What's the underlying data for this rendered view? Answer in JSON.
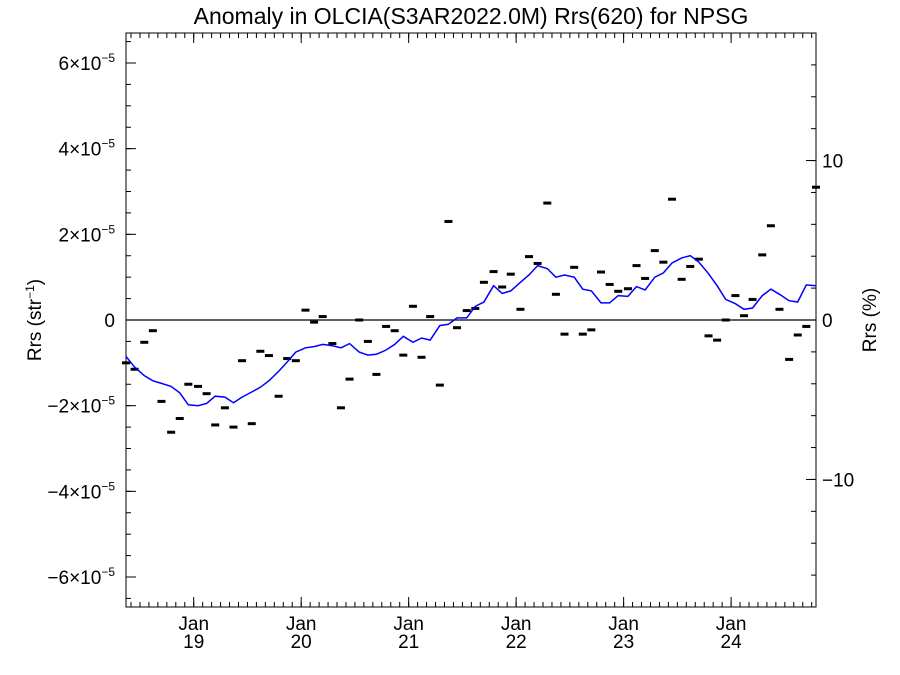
{
  "chart_data": {
    "type": "scatter",
    "title": "Anomaly in OLCIA(S3AR2022.0M) Rrs(620) for NPSG",
    "ylabel": "Rrs (str",
    "ylabel_sup": "−1",
    "ylabel_close": ")",
    "y2label": "Rrs (%)",
    "ylim": [
      -6.7e-05,
      6.7e-05
    ],
    "y2lim": [
      -18.0,
      18.0
    ],
    "xlim": [
      2018.37,
      2024.79
    ],
    "zero_line": true,
    "y_ticks": [
      {
        "value": 6e-05,
        "mantissa": "6×10",
        "exp": "−5"
      },
      {
        "value": 4e-05,
        "mantissa": "4×10",
        "exp": "−5"
      },
      {
        "value": 2e-05,
        "mantissa": "2×10",
        "exp": "−5"
      },
      {
        "value": 0,
        "mantissa": "0",
        "exp": ""
      },
      {
        "value": -2e-05,
        "mantissa": "−2×10",
        "exp": "−5"
      },
      {
        "value": -4e-05,
        "mantissa": "−4×10",
        "exp": "−5"
      },
      {
        "value": -6e-05,
        "mantissa": "−6×10",
        "exp": "−5"
      }
    ],
    "y2_ticks": [
      {
        "value": 10,
        "label": "10"
      },
      {
        "value": 0,
        "label": "0"
      },
      {
        "value": -10,
        "label": "−10"
      }
    ],
    "x_ticks": [
      {
        "value": 2019.0,
        "month": "Jan",
        "year": "19"
      },
      {
        "value": 2020.0,
        "month": "Jan",
        "year": "20"
      },
      {
        "value": 2021.0,
        "month": "Jan",
        "year": "21"
      },
      {
        "value": 2022.0,
        "month": "Jan",
        "year": "22"
      },
      {
        "value": 2023.0,
        "month": "Jan",
        "year": "23"
      },
      {
        "value": 2024.0,
        "month": "Jan",
        "year": "24"
      }
    ],
    "series": [
      {
        "kind": "points",
        "color": "#000000",
        "x": [
          2018.37,
          2018.45,
          2018.54,
          2018.62,
          2018.7,
          2018.79,
          2018.87,
          2018.95,
          2019.04,
          2019.12,
          2019.2,
          2019.29,
          2019.37,
          2019.45,
          2019.54,
          2019.62,
          2019.7,
          2019.79,
          2019.87,
          2019.95,
          2020.04,
          2020.12,
          2020.2,
          2020.29,
          2020.37,
          2020.45,
          2020.54,
          2020.62,
          2020.7,
          2020.79,
          2020.87,
          2020.95,
          2021.04,
          2021.12,
          2021.2,
          2021.29,
          2021.37,
          2021.45,
          2021.54,
          2021.62,
          2021.7,
          2021.79,
          2021.87,
          2021.95,
          2022.04,
          2022.12,
          2022.2,
          2022.29,
          2022.37,
          2022.45,
          2022.54,
          2022.62,
          2022.7,
          2022.79,
          2022.87,
          2022.95,
          2023.04,
          2023.12,
          2023.2,
          2023.29,
          2023.37,
          2023.45,
          2023.54,
          2023.62,
          2023.7,
          2023.79,
          2023.87,
          2023.95,
          2024.04,
          2024.12,
          2024.2,
          2024.29,
          2024.37,
          2024.45,
          2024.54,
          2024.62,
          2024.7,
          2024.79
        ],
        "y": [
          -1e-05,
          -1.15e-05,
          -5.2e-06,
          -2.5e-06,
          -1.9e-05,
          -2.62e-05,
          -2.3e-05,
          -1.5e-05,
          -1.55e-05,
          -1.72e-05,
          -2.45e-05,
          -2.05e-05,
          -2.5e-05,
          -9.5e-06,
          -2.42e-05,
          -7.3e-06,
          -8.3e-06,
          -1.78e-05,
          -9e-06,
          -9.5e-06,
          2.3e-06,
          -5e-07,
          8e-07,
          -5.5e-06,
          -2.05e-05,
          -1.38e-05,
          0.0,
          -5e-06,
          -1.27e-05,
          -1.5e-06,
          -2.5e-06,
          -8.2e-06,
          3.2e-06,
          -8.7e-06,
          8e-07,
          -1.52e-05,
          2.3e-05,
          -1.8e-06,
          2.2e-06,
          2.7e-06,
          8.8e-06,
          1.13e-05,
          7.7e-06,
          1.07e-05,
          2.5e-06,
          1.48e-05,
          1.32e-05,
          2.73e-05,
          6e-06,
          -3.3e-06,
          1.23e-05,
          -3.3e-06,
          -2.3e-06,
          1.12e-05,
          8.3e-06,
          6.7e-06,
          7.3e-06,
          1.27e-05,
          9.7e-06,
          1.62e-05,
          1.35e-05,
          2.82e-05,
          9.5e-06,
          1.25e-05,
          1.42e-05,
          -3.7e-06,
          -4.7e-06,
          0.0,
          5.7e-06,
          1e-06,
          4.8e-06,
          1.52e-05,
          2.2e-05,
          2.5e-06,
          -9.2e-06,
          -3.5e-06,
          -1.5e-06,
          3.1e-05
        ]
      },
      {
        "kind": "line",
        "color": "#0000ff",
        "x": [
          2018.37,
          2018.45,
          2018.54,
          2018.62,
          2018.7,
          2018.79,
          2018.87,
          2018.95,
          2019.04,
          2019.12,
          2019.2,
          2019.29,
          2019.37,
          2019.45,
          2019.54,
          2019.62,
          2019.7,
          2019.79,
          2019.87,
          2019.95,
          2020.04,
          2020.12,
          2020.2,
          2020.29,
          2020.37,
          2020.45,
          2020.54,
          2020.62,
          2020.7,
          2020.79,
          2020.87,
          2020.95,
          2021.04,
          2021.12,
          2021.2,
          2021.29,
          2021.37,
          2021.45,
          2021.54,
          2021.62,
          2021.7,
          2021.79,
          2021.87,
          2021.95,
          2022.04,
          2022.12,
          2022.2,
          2022.29,
          2022.37,
          2022.45,
          2022.54,
          2022.62,
          2022.7,
          2022.79,
          2022.87,
          2022.95,
          2023.04,
          2023.12,
          2023.2,
          2023.29,
          2023.37,
          2023.45,
          2023.54,
          2023.62,
          2023.7,
          2023.79,
          2023.87,
          2023.95,
          2024.04,
          2024.12,
          2024.2,
          2024.29,
          2024.37,
          2024.45,
          2024.54,
          2024.62,
          2024.7,
          2024.79
        ],
        "y": [
          -8.5e-06,
          -1.1e-05,
          -1.3e-05,
          -1.42e-05,
          -1.48e-05,
          -1.55e-05,
          -1.7e-05,
          -1.98e-05,
          -2e-05,
          -1.95e-05,
          -1.78e-05,
          -1.8e-05,
          -1.93e-05,
          -1.8e-05,
          -1.68e-05,
          -1.57e-05,
          -1.42e-05,
          -1.2e-05,
          -9.8e-06,
          -7.5e-06,
          -6.5e-06,
          -6.2e-06,
          -5.7e-06,
          -6e-06,
          -6.5e-06,
          -5.5e-06,
          -7.5e-06,
          -8.2e-06,
          -8e-06,
          -7e-06,
          -5.7e-06,
          -3.8e-06,
          -5.2e-06,
          -4.2e-06,
          -4.7e-06,
          -1.3e-06,
          -1e-06,
          5e-07,
          5e-07,
          3.2e-06,
          4.2e-06,
          8e-06,
          6.2e-06,
          6.8e-06,
          8.8e-06,
          1.05e-05,
          1.27e-05,
          1.2e-05,
          1e-05,
          1.05e-05,
          1e-05,
          7.2e-06,
          6.8e-06,
          4e-06,
          4e-06,
          5.7e-06,
          5.5e-06,
          7.8e-06,
          7e-06,
          1e-05,
          1.1e-05,
          1.33e-05,
          1.45e-05,
          1.5e-05,
          1.35e-05,
          1.08e-05,
          8e-06,
          4.8e-06,
          3.8e-06,
          2.5e-06,
          2.8e-06,
          5.7e-06,
          7.2e-06,
          6e-06,
          4.5e-06,
          4.2e-06,
          8.2e-06,
          8e-06
        ]
      }
    ]
  }
}
